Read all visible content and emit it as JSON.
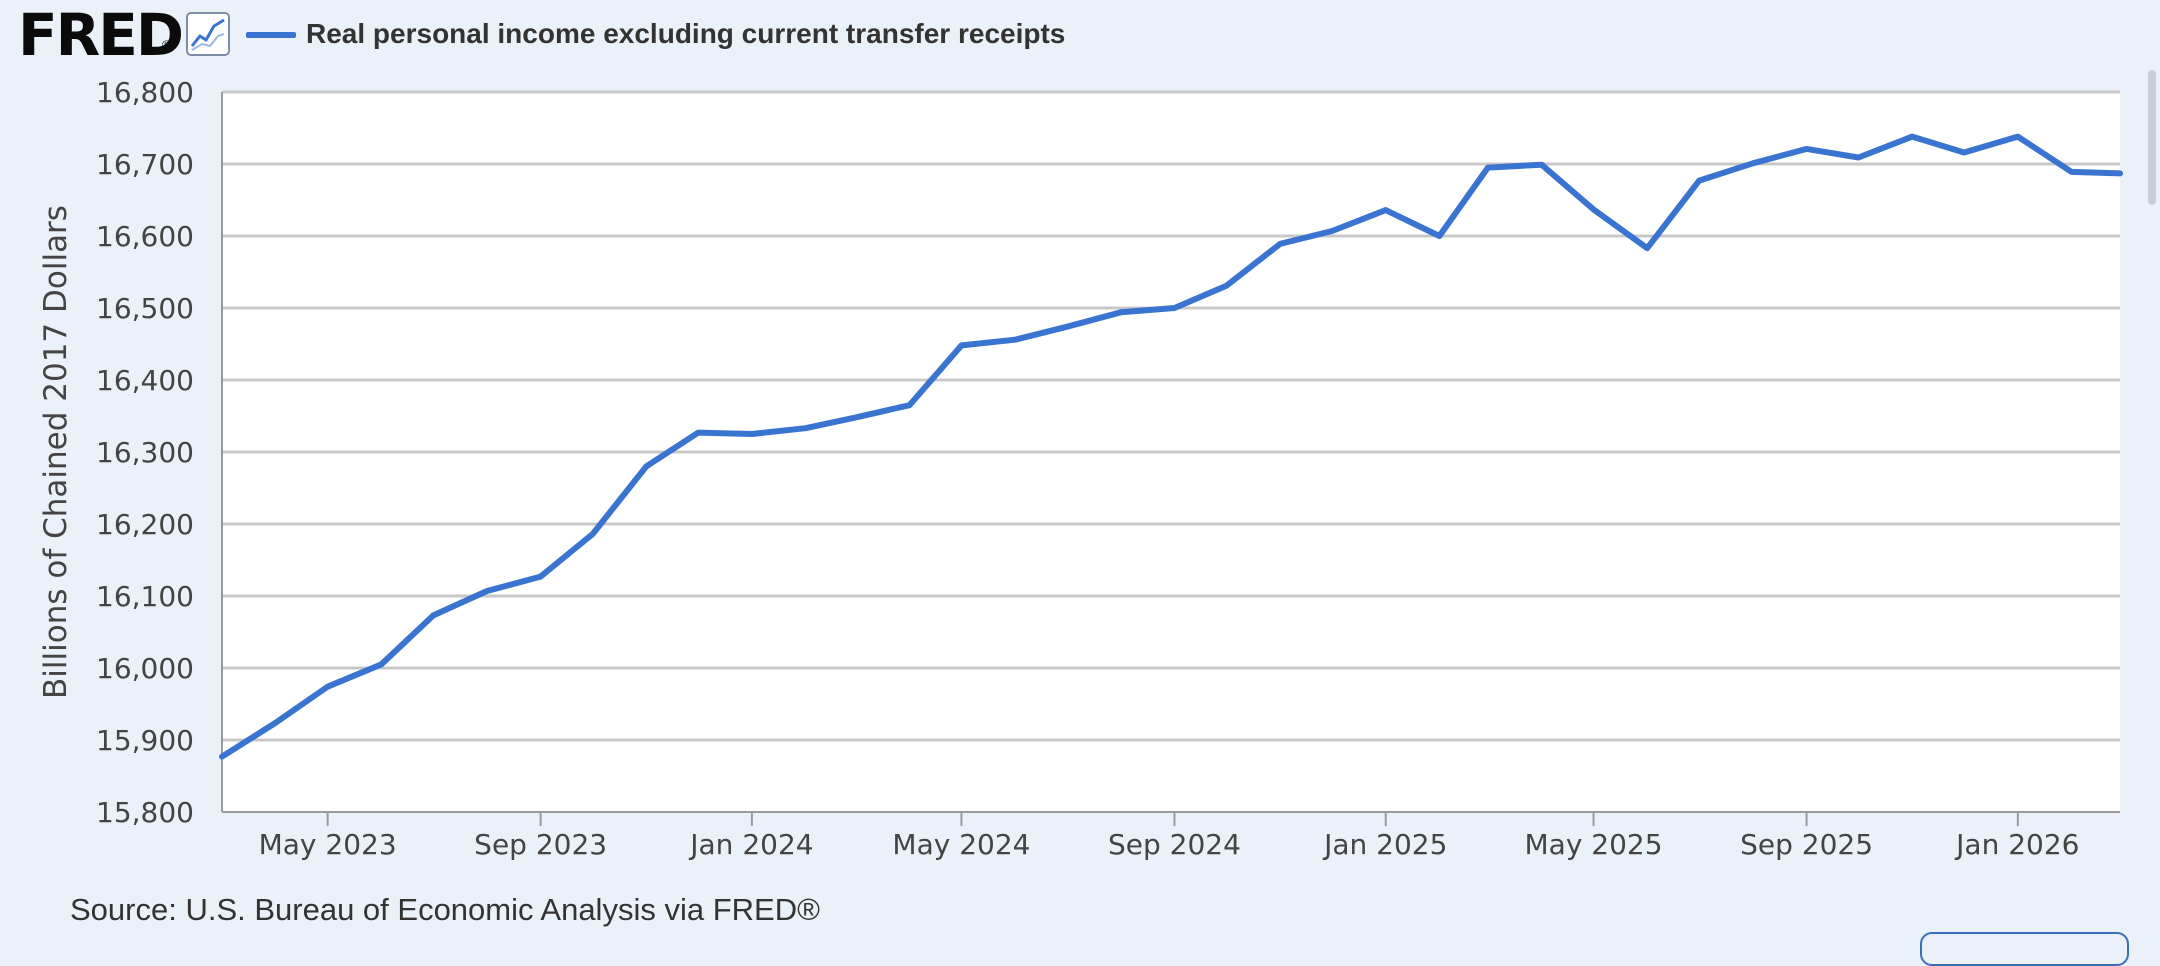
{
  "header": {
    "logo_text": "FRED",
    "logo_mark": "®",
    "icon": "line-chart-icon"
  },
  "colors": {
    "series": "#3a74d1",
    "grid": "#c8c8c8",
    "plot_bg": "#ffffff",
    "page_bg": "#eaf1f9"
  },
  "source": "Source: U.S. Bureau of Economic Analysis via FRED®",
  "chart_data": {
    "type": "line",
    "title": "",
    "xlabel": "",
    "ylabel": "Billions of Chained 2017 Dollars",
    "ylim": [
      15800,
      16800
    ],
    "yticks": [
      15800,
      15900,
      16000,
      16100,
      16200,
      16300,
      16400,
      16500,
      16600,
      16700,
      16800
    ],
    "ytick_labels": [
      "15,800",
      "15,900",
      "16,000",
      "16,100",
      "16,200",
      "16,300",
      "16,400",
      "16,500",
      "16,600",
      "16,700",
      "16,800"
    ],
    "xlim": [
      "2023-03-01",
      "2026-03-01"
    ],
    "xticks": [
      "2023-05-01",
      "2023-09-01",
      "2024-01-01",
      "2024-05-01",
      "2024-09-01",
      "2025-01-01",
      "2025-05-01",
      "2025-09-01",
      "2026-01-01"
    ],
    "xtick_labels": [
      "May 2023",
      "Sep 2023",
      "Jan 2024",
      "May 2024",
      "Sep 2024",
      "Jan 2025",
      "May 2025",
      "Sep 2025",
      "Jan 2026"
    ],
    "grid": true,
    "legend": "top-left",
    "series": [
      {
        "name": "Real personal income excluding current transfer receipts",
        "x": [
          "2023-03-01",
          "2023-04-01",
          "2023-05-01",
          "2023-06-01",
          "2023-07-01",
          "2023-08-01",
          "2023-09-01",
          "2023-10-01",
          "2023-11-01",
          "2023-12-01",
          "2024-01-01",
          "2024-02-01",
          "2024-03-01",
          "2024-04-01",
          "2024-05-01",
          "2024-06-01",
          "2024-07-01",
          "2024-08-01",
          "2024-09-01",
          "2024-10-01",
          "2024-11-01",
          "2024-12-01",
          "2025-01-01",
          "2025-02-01",
          "2025-03-01",
          "2025-04-01",
          "2025-05-01",
          "2025-06-01",
          "2025-07-01",
          "2025-08-01",
          "2025-09-01",
          "2025-10-01",
          "2025-11-01",
          "2025-12-01",
          "2026-01-01",
          "2026-02-01",
          "2026-03-01"
        ],
        "values": [
          15877,
          15924,
          15974,
          16005,
          16073,
          16107,
          16127,
          16186,
          16280,
          16327,
          16325,
          16333,
          16348,
          16365,
          16448,
          16456,
          16474,
          16494,
          16500,
          16531,
          16589,
          16607,
          16636,
          16600,
          16695,
          16699,
          16637,
          16583,
          16677,
          16701,
          16721,
          16709,
          16738,
          16716,
          16738,
          16689,
          16687
        ]
      }
    ]
  }
}
